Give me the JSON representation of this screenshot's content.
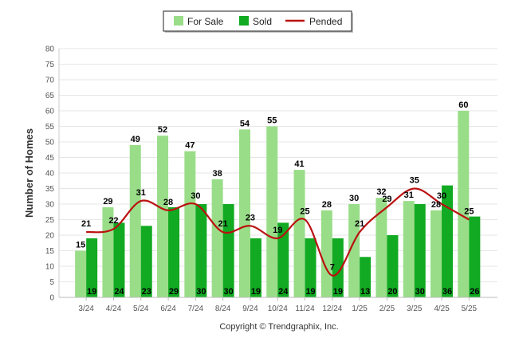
{
  "chart_data": {
    "type": "bar",
    "ylabel": "Number of Homes",
    "ylim": [
      0,
      80
    ],
    "yticks": [
      0,
      5,
      10,
      15,
      20,
      25,
      30,
      35,
      40,
      45,
      50,
      55,
      60,
      65,
      70,
      75,
      80
    ],
    "grid": true,
    "legend_position": "top-center",
    "categories": [
      "3/24",
      "4/24",
      "5/24",
      "6/24",
      "7/24",
      "8/24",
      "9/24",
      "10/24",
      "11/24",
      "12/24",
      "1/25",
      "2/25",
      "3/25",
      "4/25",
      "5/25"
    ],
    "series": [
      {
        "name": "For Sale",
        "kind": "bar",
        "color": "#99dd88",
        "values": [
          15,
          29,
          49,
          52,
          47,
          38,
          54,
          55,
          41,
          28,
          30,
          32,
          31,
          28,
          60
        ]
      },
      {
        "name": "Sold",
        "kind": "bar",
        "color": "#11aa22",
        "values": [
          19,
          24,
          23,
          29,
          30,
          30,
          19,
          24,
          19,
          19,
          13,
          20,
          30,
          36,
          26
        ]
      },
      {
        "name": "Pended",
        "kind": "line",
        "color": "#bb1111",
        "values": [
          21,
          22,
          31,
          28,
          30,
          21,
          23,
          19,
          25,
          7,
          21,
          29,
          35,
          30,
          25
        ]
      }
    ]
  },
  "credit": "Copyright © Trendgraphix, Inc."
}
